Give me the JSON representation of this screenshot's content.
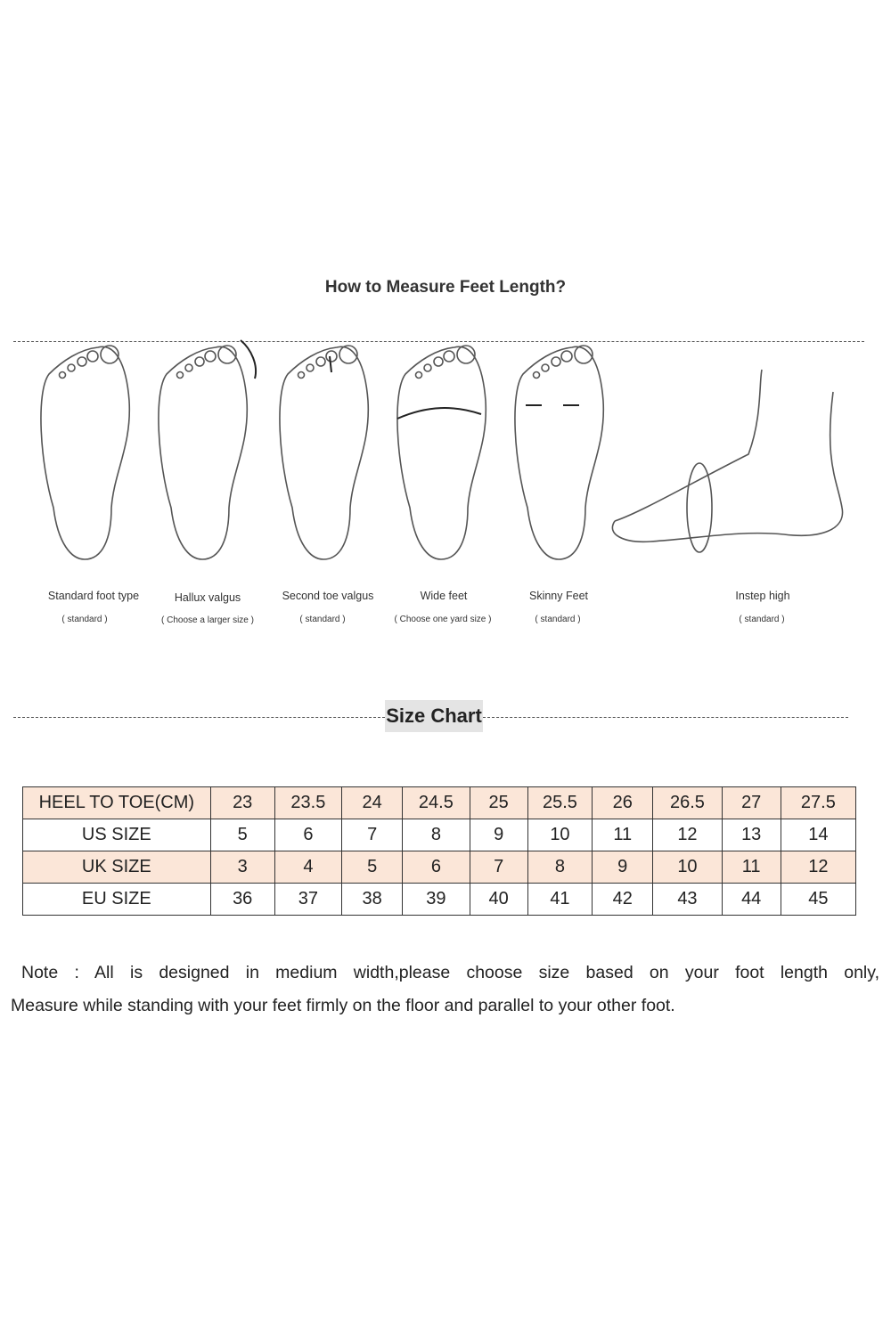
{
  "measure_title": "How to Measure Feet Length?",
  "foot_types": [
    {
      "label": "Standard foot type",
      "sub": "( standard )"
    },
    {
      "label": "Hallux valgus",
      "sub": "( Choose a larger size )"
    },
    {
      "label": "Second toe valgus",
      "sub": "( standard )"
    },
    {
      "label": "Wide feet",
      "sub": "( Choose one yard size )"
    },
    {
      "label": "Skinny Feet",
      "sub": "( standard )"
    },
    {
      "label": "Instep high",
      "sub": "( standard )"
    }
  ],
  "size_chart_title": "Size Chart",
  "table": {
    "rows": [
      {
        "header": "HEEL TO TOE(CM)",
        "values": [
          "23",
          "23.5",
          "24",
          "24.5",
          "25",
          "25.5",
          "26",
          "26.5",
          "27",
          "27.5"
        ]
      },
      {
        "header": "US SIZE",
        "values": [
          "5",
          "6",
          "7",
          "8",
          "9",
          "10",
          "11",
          "12",
          "13",
          "14"
        ]
      },
      {
        "header": "UK SIZE",
        "values": [
          "3",
          "4",
          "5",
          "6",
          "7",
          "8",
          "9",
          "10",
          "11",
          "12"
        ]
      },
      {
        "header": "EU SIZE",
        "values": [
          "36",
          "37",
          "38",
          "39",
          "40",
          "41",
          "42",
          "43",
          "44",
          "45"
        ]
      }
    ],
    "shade_color": "#fbe6d8"
  },
  "note": {
    "line1": "Note :  All is designed in medium width,please choose size based on your foot length only,",
    "line2": "Measure while standing with your feet firmly on the floor and parallel to your other foot."
  }
}
